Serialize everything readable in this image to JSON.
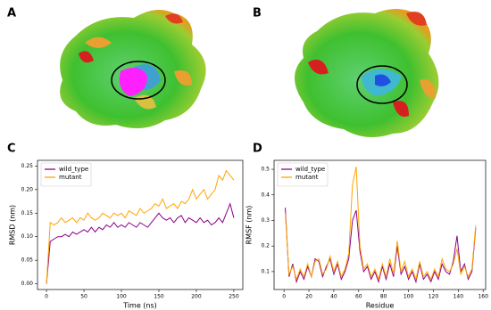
{
  "panels": [
    "A",
    "B",
    "C",
    "D"
  ],
  "chart_data": [
    {
      "type": "line",
      "xlabel": "Time (ns)",
      "ylabel": "RMSD (nm)",
      "x": [
        0,
        5,
        10,
        15,
        20,
        25,
        30,
        35,
        40,
        45,
        50,
        55,
        60,
        65,
        70,
        75,
        80,
        85,
        90,
        95,
        100,
        105,
        110,
        115,
        120,
        125,
        130,
        135,
        140,
        145,
        150,
        155,
        160,
        165,
        170,
        175,
        180,
        185,
        190,
        195,
        200,
        205,
        210,
        215,
        220,
        225,
        230,
        235,
        240,
        245,
        250
      ],
      "series": [
        {
          "name": "wild_type",
          "color": "#8b008b",
          "values": [
            0.0,
            0.09,
            0.095,
            0.1,
            0.1,
            0.105,
            0.1,
            0.11,
            0.105,
            0.11,
            0.115,
            0.11,
            0.12,
            0.11,
            0.12,
            0.115,
            0.125,
            0.12,
            0.13,
            0.12,
            0.125,
            0.12,
            0.13,
            0.125,
            0.12,
            0.13,
            0.125,
            0.12,
            0.13,
            0.14,
            0.15,
            0.14,
            0.135,
            0.14,
            0.13,
            0.14,
            0.145,
            0.13,
            0.14,
            0.135,
            0.13,
            0.14,
            0.13,
            0.135,
            0.125,
            0.13,
            0.14,
            0.13,
            0.15,
            0.17,
            0.14
          ]
        },
        {
          "name": "mutant",
          "color": "#ffa500",
          "values": [
            0.0,
            0.13,
            0.125,
            0.13,
            0.14,
            0.13,
            0.135,
            0.14,
            0.13,
            0.14,
            0.135,
            0.15,
            0.14,
            0.135,
            0.14,
            0.15,
            0.145,
            0.14,
            0.15,
            0.145,
            0.15,
            0.14,
            0.155,
            0.15,
            0.145,
            0.16,
            0.15,
            0.155,
            0.16,
            0.17,
            0.165,
            0.18,
            0.16,
            0.165,
            0.17,
            0.16,
            0.175,
            0.17,
            0.18,
            0.2,
            0.18,
            0.19,
            0.2,
            0.18,
            0.19,
            0.2,
            0.23,
            0.22,
            0.24,
            0.23,
            0.22
          ]
        }
      ],
      "xlim": [
        -12,
        262
      ],
      "xticks": [
        0,
        50,
        100,
        150,
        200,
        250
      ],
      "ylim": [
        -0.012,
        0.262
      ],
      "yticks": [
        {
          "value": 0,
          "label": "0.00"
        },
        {
          "value": 0.05,
          "label": "0.05"
        },
        {
          "value": 0.1,
          "label": "0.10"
        },
        {
          "value": 0.15,
          "label": "0.15"
        },
        {
          "value": 0.2,
          "label": "0.20"
        },
        {
          "value": 0.25,
          "label": "0.25"
        }
      ],
      "legend": "upper left"
    },
    {
      "type": "line",
      "xlabel": "Residue",
      "ylabel": "RMSF (nm)",
      "x": [
        1,
        4,
        7,
        10,
        13,
        16,
        19,
        22,
        25,
        28,
        31,
        34,
        37,
        40,
        43,
        46,
        49,
        52,
        55,
        58,
        61,
        64,
        67,
        70,
        73,
        76,
        79,
        82,
        85,
        88,
        91,
        94,
        97,
        100,
        103,
        106,
        109,
        112,
        115,
        118,
        121,
        124,
        127,
        130,
        133,
        136,
        139,
        142,
        145,
        148,
        151,
        154
      ],
      "series": [
        {
          "name": "wild_type",
          "color": "#8b008b",
          "values": [
            0.35,
            0.08,
            0.13,
            0.06,
            0.1,
            0.07,
            0.12,
            0.08,
            0.15,
            0.14,
            0.08,
            0.12,
            0.15,
            0.09,
            0.13,
            0.07,
            0.1,
            0.15,
            0.3,
            0.34,
            0.18,
            0.1,
            0.12,
            0.07,
            0.1,
            0.06,
            0.12,
            0.07,
            0.13,
            0.08,
            0.2,
            0.09,
            0.12,
            0.07,
            0.1,
            0.06,
            0.13,
            0.07,
            0.09,
            0.06,
            0.1,
            0.07,
            0.13,
            0.1,
            0.09,
            0.14,
            0.24,
            0.1,
            0.13,
            0.07,
            0.1,
            0.27
          ]
        },
        {
          "name": "mutant",
          "color": "#ffa500",
          "values": [
            0.33,
            0.09,
            0.12,
            0.07,
            0.11,
            0.08,
            0.13,
            0.08,
            0.14,
            0.15,
            0.09,
            0.11,
            0.16,
            0.1,
            0.14,
            0.08,
            0.11,
            0.17,
            0.44,
            0.51,
            0.2,
            0.11,
            0.13,
            0.08,
            0.11,
            0.07,
            0.13,
            0.08,
            0.15,
            0.09,
            0.22,
            0.1,
            0.14,
            0.08,
            0.11,
            0.07,
            0.14,
            0.08,
            0.1,
            0.07,
            0.11,
            0.08,
            0.15,
            0.11,
            0.1,
            0.13,
            0.19,
            0.09,
            0.12,
            0.08,
            0.11,
            0.28
          ]
        }
      ],
      "xlim": [
        -8,
        162
      ],
      "xticks": [
        0,
        20,
        40,
        60,
        80,
        100,
        120,
        140,
        160
      ],
      "ylim": [
        0.03,
        0.535
      ],
      "yticks": [
        0.1,
        0.2,
        0.3,
        0.4,
        0.5
      ],
      "legend": "upper left"
    }
  ]
}
